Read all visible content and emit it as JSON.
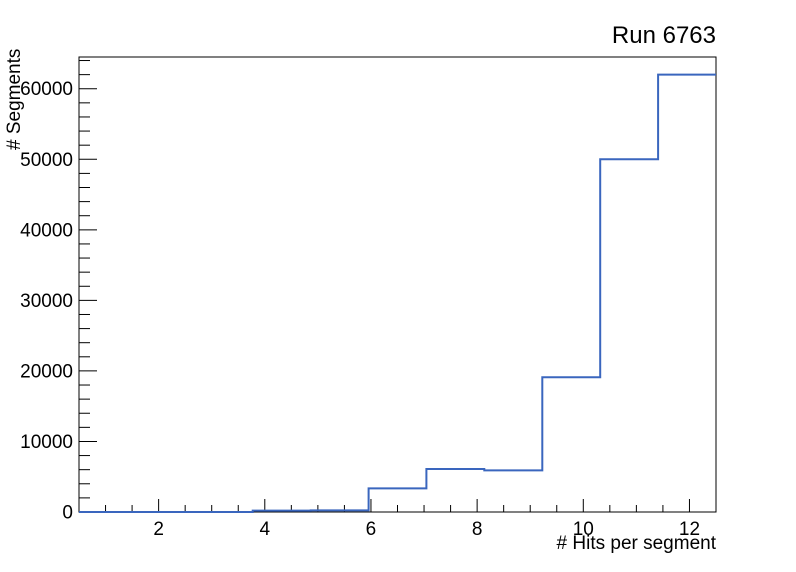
{
  "chart_data": {
    "type": "step-histogram",
    "title": "Run 6763",
    "xlabel": "# Hits per segment",
    "ylabel": "# Segments",
    "xlim": [
      0.5,
      12.5
    ],
    "ylim": [
      0,
      64500
    ],
    "bin_edges": [
      0.5,
      1.591,
      2.682,
      3.773,
      4.864,
      5.955,
      7.045,
      8.136,
      9.227,
      10.318,
      11.409,
      12.5
    ],
    "values": [
      0,
      0,
      0,
      200,
      230,
      3350,
      6100,
      5900,
      19100,
      50000,
      62000
    ],
    "x_major_ticks": [
      2,
      4,
      6,
      8,
      10,
      12
    ],
    "x_major_tick_labels": [
      "2",
      "4",
      "6",
      "8",
      "10",
      "12"
    ],
    "x_minor_tick_step": 0.5,
    "y_major_ticks": [
      0,
      10000,
      20000,
      30000,
      40000,
      50000,
      60000
    ],
    "y_major_tick_labels": [
      "0",
      "10000",
      "20000",
      "30000",
      "40000",
      "50000",
      "60000"
    ],
    "y_minor_tick_step": 2000,
    "grid": "off",
    "legend": "none",
    "line_color": "#3a66be",
    "frame_color": "#000000",
    "background_color": "#ffffff",
    "text_color": "#000000"
  }
}
